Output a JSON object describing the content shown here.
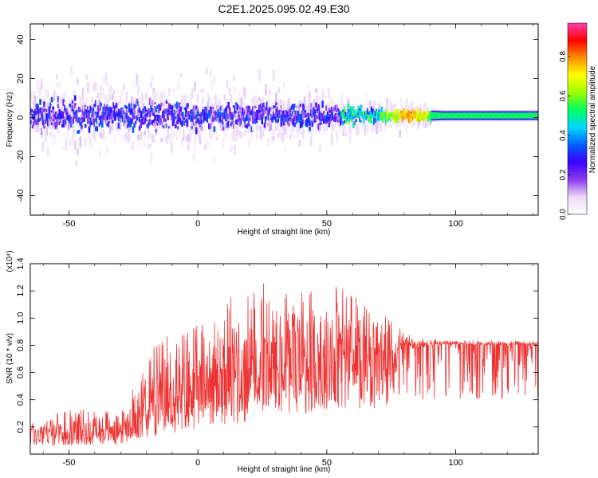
{
  "figure_title": "C2E1.2025.095.02.49.E30",
  "chart_data": [
    {
      "type": "heatmap",
      "xlabel": "Height of straight line (km)",
      "ylabel": "Frequency (Hz)",
      "xlim": [
        -65,
        132
      ],
      "ylim": [
        -50,
        48
      ],
      "x_ticks": [
        -50,
        0,
        50,
        100
      ],
      "y_ticks": [
        -40,
        -20,
        0,
        20,
        40
      ],
      "grid": false,
      "colorbar": {
        "label": "Normalized spectral amplitude",
        "range": [
          0.0,
          0.97
        ],
        "ticks": [
          "0.0",
          "0.2",
          "0.4",
          "0.6",
          "0.8"
        ],
        "tick_values": [
          0.0,
          0.2,
          0.4,
          0.6,
          0.8
        ],
        "colors": [
          "#ffffff",
          "#ecd9f7",
          "#8a3cf0",
          "#3a00ff",
          "#0060ff",
          "#00d8ff",
          "#00ff60",
          "#9cff00",
          "#ffff00",
          "#ff9000",
          "#ff0000",
          "#ff40b0"
        ]
      },
      "band": {
        "center_hz": 1,
        "spread_profile": [
          {
            "x": -65,
            "core_halfwidth": 7,
            "outer_halfwidth": 16
          },
          {
            "x": 0,
            "core_halfwidth": 6,
            "outer_halfwidth": 14
          },
          {
            "x": 50,
            "core_halfwidth": 5,
            "outer_halfwidth": 11
          },
          {
            "x": 70,
            "core_halfwidth": 3,
            "outer_halfwidth": 6
          },
          {
            "x": 95,
            "core_halfwidth": 1.5,
            "outer_halfwidth": 3
          },
          {
            "x": 132,
            "core_halfwidth": 1.5,
            "outer_halfwidth": 3
          }
        ],
        "peak": {
          "x": 82,
          "y": 1,
          "amplitude": 0.95
        },
        "steady_amplitude": 0.55
      }
    },
    {
      "type": "line",
      "xlabel": "Height of straight line (km)",
      "ylabel": "SNR (10 * v/v)",
      "y_multiplier": "(x10⁴)",
      "xlim": [
        -65,
        132
      ],
      "ylim": [
        0,
        1.4
      ],
      "x_ticks": [
        -50,
        0,
        50,
        100
      ],
      "y_ticks": [
        "0.2",
        "0.4",
        "0.6",
        "0.8",
        "1.0",
        "1.2",
        "1.4"
      ],
      "y_tick_values": [
        0.2,
        0.4,
        0.6,
        0.8,
        1.0,
        1.2,
        1.4
      ],
      "color": "#ee3333",
      "grid": false,
      "envelope": [
        {
          "x": -65,
          "base": 0.12,
          "high": 0.25
        },
        {
          "x": -45,
          "base": 0.13,
          "high": 0.35
        },
        {
          "x": -30,
          "base": 0.14,
          "high": 0.3
        },
        {
          "x": -20,
          "base": 0.25,
          "high": 0.75
        },
        {
          "x": -10,
          "base": 0.3,
          "high": 0.9
        },
        {
          "x": 0,
          "base": 0.35,
          "high": 0.95
        },
        {
          "x": 15,
          "base": 0.45,
          "high": 1.2
        },
        {
          "x": 30,
          "base": 0.55,
          "high": 1.3
        },
        {
          "x": 50,
          "base": 0.6,
          "high": 1.3
        },
        {
          "x": 65,
          "base": 0.65,
          "high": 1.15
        },
        {
          "x": 75,
          "base": 0.72,
          "high": 0.98
        },
        {
          "x": 85,
          "base": 0.78,
          "high": 0.86
        },
        {
          "x": 95,
          "base": 0.8,
          "high": 0.84
        },
        {
          "x": 132,
          "base": 0.8,
          "high": 0.83
        }
      ]
    }
  ]
}
